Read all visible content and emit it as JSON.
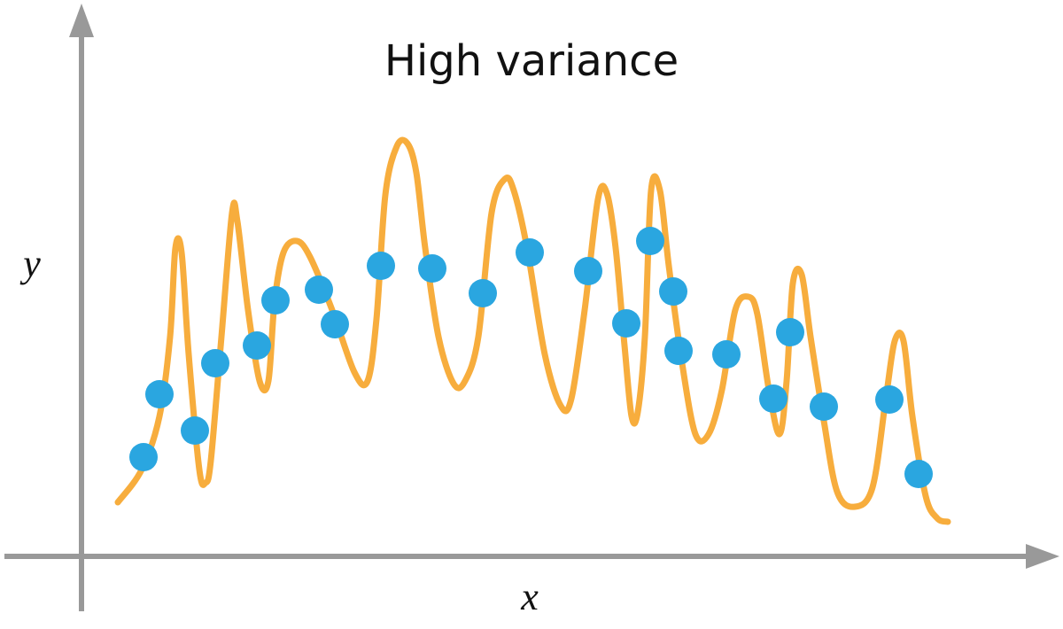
{
  "chart_data": {
    "type": "scatter",
    "title": "High variance",
    "x_label": "x",
    "y_label": "y",
    "xlim": [
      0,
      110
    ],
    "ylim": [
      0,
      62
    ],
    "series": [
      {
        "type": "line",
        "color": "#f7ad3d",
        "x": [
          4.1,
          6.8,
          8.8,
          10,
          10.6,
          11.3,
          12.1,
          13.3,
          14,
          14.6,
          15.8,
          17,
          17.6,
          18.8,
          20.1,
          21.1,
          21.8,
          22.8,
          24.3,
          25.8,
          28.3,
          30.8,
          32.3,
          33.3,
          34.3,
          35.6,
          36.8,
          37.8,
          38.8,
          40.3,
          42,
          43.3,
          44.8,
          46.3,
          47.8,
          48.8,
          50.3,
          52.3,
          54.1,
          55.3,
          56.8,
          58.3,
          59.3,
          60.3,
          61.3,
          62.1,
          62.8,
          63.6,
          64.3,
          65.3,
          66.3,
          67.8,
          69.3,
          70.8,
          72.3,
          73.8,
          75.3,
          76.3,
          77.6,
          78.8,
          79.6,
          80.3,
          81.3,
          82.3,
          83.8,
          85.3,
          87.3,
          89.3,
          90.8,
          91.8,
          92.8,
          93.8,
          95.3,
          96.6,
          97.8
        ],
        "values": [
          6.1,
          9.8,
          15.8,
          24.8,
          34.8,
          34.3,
          22.8,
          9.8,
          8.3,
          10.8,
          24.8,
          38.8,
          37.8,
          27.8,
          19.8,
          19.8,
          28.8,
          34.3,
          35.6,
          33.8,
          27.8,
          20.8,
          19.8,
          26.8,
          40.8,
          46.3,
          46.6,
          43.3,
          34.8,
          24.8,
          19.5,
          19.8,
          24.8,
          38.8,
          42.6,
          41.3,
          34.8,
          22.8,
          17,
          17.8,
          27.8,
          40.3,
          41,
          34.8,
          23.8,
          15.8,
          16.3,
          24.8,
          41.3,
          41.3,
          32.8,
          21.8,
          13.8,
          13.8,
          18.8,
          27.8,
          29.3,
          27.3,
          18.8,
          13.8,
          19.8,
          30.8,
          31.8,
          24.8,
          15.3,
          7.3,
          5.6,
          7.8,
          17.8,
          24.3,
          24.3,
          15.8,
          6.8,
          4.3,
          3.9
        ]
      },
      {
        "type": "scatter",
        "color": "#2aa6e0",
        "x": [
          7.0,
          8.8,
          12.8,
          15.1,
          19.8,
          21.9,
          26.8,
          28.6,
          33.8,
          39.6,
          45.3,
          50.6,
          57.2,
          61.5,
          64.2,
          66.8,
          67.4,
          72.8,
          78.1,
          80.0,
          83.8,
          91.2,
          94.5
        ],
        "values": [
          11.2,
          18.3,
          14.2,
          21.8,
          23.8,
          28.9,
          30.1,
          26.2,
          32.8,
          32.5,
          29.7,
          34.3,
          32.2,
          26.3,
          35.6,
          29.9,
          23.2,
          22.8,
          17.8,
          25.3,
          16.9,
          17.7,
          9.3
        ]
      }
    ]
  }
}
